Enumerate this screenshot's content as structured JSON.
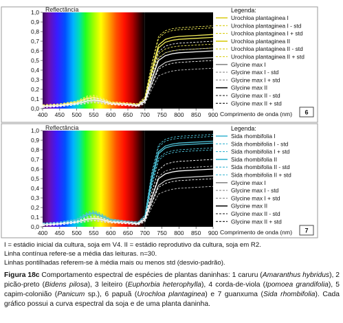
{
  "colors": {
    "urochloa": "#f4ee5a",
    "sida": "#4fc3d9",
    "glycine_i": "#c8c8c8",
    "glycine_ii": "#ffffff",
    "legend_urochloa": "#d8cc10",
    "legend_sida": "#36b4d0",
    "legend_glycine_i": "#8a8a8a",
    "legend_glycine_ii": "#111111"
  },
  "notes": [
    "I = estádio inicial da cultura, soja em V4. II = estádio reprodutivo da cultura, soja em R2.",
    "Linha contínua refere-se a média das leituras. n=30.",
    "Linhas pontilhadas referem-se à média mais ou menos std (desvio-padrão)."
  ],
  "caption": {
    "label": "Figura 18c",
    "parts": [
      {
        "t": " Comportamento espectral de espécies de plantas daninhas: 1 caruru (",
        "i": false
      },
      {
        "t": "Amaranthus hybridus",
        "i": true
      },
      {
        "t": "), 2 picão-preto (",
        "i": false
      },
      {
        "t": "Bidens pilosa",
        "i": true
      },
      {
        "t": "), 3 leiteiro (",
        "i": false
      },
      {
        "t": "Euphorbia heterophylla",
        "i": true
      },
      {
        "t": "), 4 corda-de-viola (",
        "i": false
      },
      {
        "t": "Ipomoea grandifolia",
        "i": true
      },
      {
        "t": "), 5 capim-colonião (",
        "i": false
      },
      {
        "t": "Panicum",
        "i": true
      },
      {
        "t": " sp.), 6 papuã (",
        "i": false
      },
      {
        "t": "Urochloa plantaginea",
        "i": true
      },
      {
        "t": ") e 7 guanxuma (",
        "i": false
      },
      {
        "t": "Sida rhombifolia",
        "i": true
      },
      {
        "t": "). Cada gráfico possui a curva espectral da soja e de uma planta daninha.",
        "i": false
      }
    ]
  },
  "chart_data": [
    {
      "type": "line",
      "panel_number": "6",
      "ylabel": "Reflectância",
      "xlabel": "Comprimento de onda (nm)",
      "legend_title": "Legenda:",
      "xlim": [
        400,
        900
      ],
      "ylim": [
        0.0,
        1.0
      ],
      "xticks": [
        400,
        450,
        500,
        550,
        600,
        650,
        700,
        750,
        800,
        850,
        900
      ],
      "yticks": [
        0.0,
        0.1,
        0.2,
        0.3,
        0.4,
        0.5,
        0.6,
        0.7,
        0.8,
        0.9,
        1.0
      ],
      "x": [
        400,
        450,
        500,
        530,
        550,
        570,
        600,
        650,
        680,
        700,
        720,
        740,
        760,
        780,
        800,
        850,
        900
      ],
      "series": [
        {
          "name": "Urochloa plantaginea I",
          "color_key": "urochloa",
          "style": "solid",
          "values": [
            0.03,
            0.04,
            0.07,
            0.11,
            0.12,
            0.1,
            0.06,
            0.05,
            0.04,
            0.1,
            0.4,
            0.66,
            0.72,
            0.74,
            0.75,
            0.76,
            0.77
          ]
        },
        {
          "name": "Urochloa plantaginea I - std",
          "color_key": "urochloa",
          "style": "dashed",
          "values": [
            0.02,
            0.03,
            0.06,
            0.09,
            0.1,
            0.08,
            0.05,
            0.04,
            0.03,
            0.08,
            0.34,
            0.57,
            0.62,
            0.64,
            0.65,
            0.66,
            0.67
          ]
        },
        {
          "name": "Urochloa plantaginea I + std",
          "color_key": "urochloa",
          "style": "dashed",
          "values": [
            0.04,
            0.05,
            0.08,
            0.13,
            0.14,
            0.12,
            0.07,
            0.06,
            0.05,
            0.12,
            0.46,
            0.75,
            0.81,
            0.83,
            0.84,
            0.85,
            0.86
          ]
        },
        {
          "name": "Urochloa plantaginea II",
          "color_key": "urochloa",
          "style": "solid",
          "values": [
            0.03,
            0.04,
            0.06,
            0.1,
            0.11,
            0.09,
            0.06,
            0.05,
            0.04,
            0.1,
            0.38,
            0.63,
            0.69,
            0.71,
            0.72,
            0.73,
            0.74
          ]
        },
        {
          "name": "Urochloa plantaginea II - std",
          "color_key": "urochloa",
          "style": "dashed",
          "values": [
            0.02,
            0.03,
            0.05,
            0.08,
            0.09,
            0.07,
            0.05,
            0.04,
            0.03,
            0.08,
            0.31,
            0.53,
            0.58,
            0.6,
            0.61,
            0.62,
            0.63
          ]
        },
        {
          "name": "Urochloa plantaginea II + std",
          "color_key": "urochloa",
          "style": "dashed",
          "values": [
            0.04,
            0.05,
            0.07,
            0.12,
            0.13,
            0.11,
            0.07,
            0.06,
            0.05,
            0.12,
            0.45,
            0.73,
            0.79,
            0.81,
            0.82,
            0.83,
            0.84
          ]
        },
        {
          "name": "Glycine max I",
          "color_key": "glycine_i",
          "style": "solid",
          "values": [
            0.02,
            0.03,
            0.05,
            0.07,
            0.08,
            0.07,
            0.05,
            0.04,
            0.03,
            0.07,
            0.26,
            0.43,
            0.48,
            0.5,
            0.51,
            0.52,
            0.53
          ]
        },
        {
          "name": "Glycine max I - std",
          "color_key": "glycine_i",
          "style": "dashed",
          "values": [
            0.01,
            0.02,
            0.04,
            0.05,
            0.06,
            0.05,
            0.04,
            0.03,
            0.02,
            0.05,
            0.2,
            0.34,
            0.37,
            0.39,
            0.4,
            0.41,
            0.42
          ]
        },
        {
          "name": "Glycine max I + std",
          "color_key": "glycine_i",
          "style": "dashed",
          "values": [
            0.03,
            0.04,
            0.06,
            0.09,
            0.1,
            0.09,
            0.06,
            0.05,
            0.04,
            0.09,
            0.32,
            0.52,
            0.58,
            0.6,
            0.61,
            0.62,
            0.63
          ]
        },
        {
          "name": "Glycine max II",
          "color_key": "glycine_ii",
          "style": "solid",
          "values": [
            0.02,
            0.03,
            0.05,
            0.08,
            0.09,
            0.08,
            0.05,
            0.04,
            0.03,
            0.08,
            0.3,
            0.5,
            0.55,
            0.57,
            0.58,
            0.59,
            0.6
          ]
        },
        {
          "name": "Glycine max II - std",
          "color_key": "glycine_ii",
          "style": "dashed",
          "values": [
            0.01,
            0.02,
            0.04,
            0.06,
            0.07,
            0.06,
            0.04,
            0.03,
            0.02,
            0.06,
            0.24,
            0.41,
            0.45,
            0.47,
            0.48,
            0.49,
            0.5
          ]
        },
        {
          "name": "Glycine max II + std",
          "color_key": "glycine_ii",
          "style": "dashed",
          "values": [
            0.03,
            0.04,
            0.06,
            0.1,
            0.11,
            0.1,
            0.06,
            0.05,
            0.04,
            0.1,
            0.36,
            0.59,
            0.65,
            0.67,
            0.68,
            0.69,
            0.7
          ]
        }
      ]
    },
    {
      "type": "line",
      "panel_number": "7",
      "ylabel": "Reflectância",
      "xlabel": "Comprimento de onda (nm)",
      "legend_title": "Legenda:",
      "xlim": [
        400,
        900
      ],
      "ylim": [
        0.0,
        1.0
      ],
      "xticks": [
        400,
        450,
        500,
        550,
        600,
        650,
        700,
        750,
        800,
        850,
        900
      ],
      "yticks": [
        0.0,
        0.1,
        0.2,
        0.3,
        0.4,
        0.5,
        0.6,
        0.7,
        0.8,
        0.9,
        1.0
      ],
      "x": [
        400,
        450,
        500,
        530,
        550,
        570,
        600,
        650,
        680,
        700,
        720,
        740,
        760,
        780,
        800,
        850,
        900
      ],
      "series": [
        {
          "name": "Sida rhombifolia I",
          "color_key": "sida",
          "style": "solid",
          "values": [
            0.03,
            0.04,
            0.07,
            0.13,
            0.15,
            0.12,
            0.07,
            0.05,
            0.04,
            0.1,
            0.5,
            0.78,
            0.84,
            0.86,
            0.87,
            0.88,
            0.89
          ]
        },
        {
          "name": "Sida rhombifolia I - std",
          "color_key": "sida",
          "style": "dashed",
          "values": [
            0.02,
            0.03,
            0.06,
            0.11,
            0.13,
            0.1,
            0.06,
            0.04,
            0.03,
            0.08,
            0.44,
            0.71,
            0.77,
            0.79,
            0.8,
            0.81,
            0.82
          ]
        },
        {
          "name": "Sida rhombifolia I + std",
          "color_key": "sida",
          "style": "dashed",
          "values": [
            0.04,
            0.05,
            0.08,
            0.15,
            0.17,
            0.14,
            0.08,
            0.06,
            0.05,
            0.12,
            0.56,
            0.85,
            0.91,
            0.93,
            0.94,
            0.95,
            0.96
          ]
        },
        {
          "name": "Sida rhombifolia II",
          "color_key": "sida",
          "style": "solid",
          "values": [
            0.03,
            0.04,
            0.07,
            0.12,
            0.14,
            0.11,
            0.07,
            0.05,
            0.04,
            0.1,
            0.48,
            0.76,
            0.82,
            0.84,
            0.85,
            0.86,
            0.87
          ]
        },
        {
          "name": "Sida rhombifolia II - std",
          "color_key": "sida",
          "style": "dashed",
          "values": [
            0.02,
            0.03,
            0.06,
            0.1,
            0.12,
            0.09,
            0.06,
            0.04,
            0.03,
            0.08,
            0.42,
            0.69,
            0.75,
            0.77,
            0.78,
            0.79,
            0.8
          ]
        },
        {
          "name": "Sida rhombifolia II + std",
          "color_key": "sida",
          "style": "dashed",
          "values": [
            0.04,
            0.05,
            0.08,
            0.14,
            0.16,
            0.13,
            0.08,
            0.06,
            0.05,
            0.12,
            0.54,
            0.83,
            0.89,
            0.91,
            0.92,
            0.93,
            0.94
          ]
        },
        {
          "name": "Glycine max I",
          "color_key": "glycine_i",
          "style": "solid",
          "values": [
            0.02,
            0.03,
            0.05,
            0.07,
            0.08,
            0.07,
            0.05,
            0.04,
            0.03,
            0.07,
            0.26,
            0.43,
            0.48,
            0.5,
            0.51,
            0.52,
            0.53
          ]
        },
        {
          "name": "Glycine max I - std",
          "color_key": "glycine_i",
          "style": "dashed",
          "values": [
            0.01,
            0.02,
            0.04,
            0.05,
            0.06,
            0.05,
            0.04,
            0.03,
            0.02,
            0.05,
            0.2,
            0.34,
            0.37,
            0.39,
            0.4,
            0.41,
            0.42
          ]
        },
        {
          "name": "Glycine max I + std",
          "color_key": "glycine_i",
          "style": "dashed",
          "values": [
            0.03,
            0.04,
            0.06,
            0.09,
            0.1,
            0.09,
            0.06,
            0.05,
            0.04,
            0.09,
            0.32,
            0.52,
            0.58,
            0.6,
            0.61,
            0.62,
            0.63
          ]
        },
        {
          "name": "Glycine max II",
          "color_key": "glycine_ii",
          "style": "solid",
          "values": [
            0.02,
            0.03,
            0.05,
            0.08,
            0.09,
            0.08,
            0.05,
            0.04,
            0.03,
            0.08,
            0.3,
            0.5,
            0.55,
            0.57,
            0.58,
            0.59,
            0.6
          ]
        },
        {
          "name": "Glycine max II - std",
          "color_key": "glycine_ii",
          "style": "dashed",
          "values": [
            0.01,
            0.02,
            0.04,
            0.06,
            0.07,
            0.06,
            0.04,
            0.03,
            0.02,
            0.06,
            0.24,
            0.41,
            0.45,
            0.47,
            0.48,
            0.49,
            0.5
          ]
        },
        {
          "name": "Glycine max II + std",
          "color_key": "glycine_ii",
          "style": "dashed",
          "values": [
            0.03,
            0.04,
            0.06,
            0.1,
            0.11,
            0.1,
            0.06,
            0.05,
            0.04,
            0.1,
            0.36,
            0.59,
            0.65,
            0.67,
            0.68,
            0.69,
            0.7
          ]
        }
      ]
    }
  ]
}
